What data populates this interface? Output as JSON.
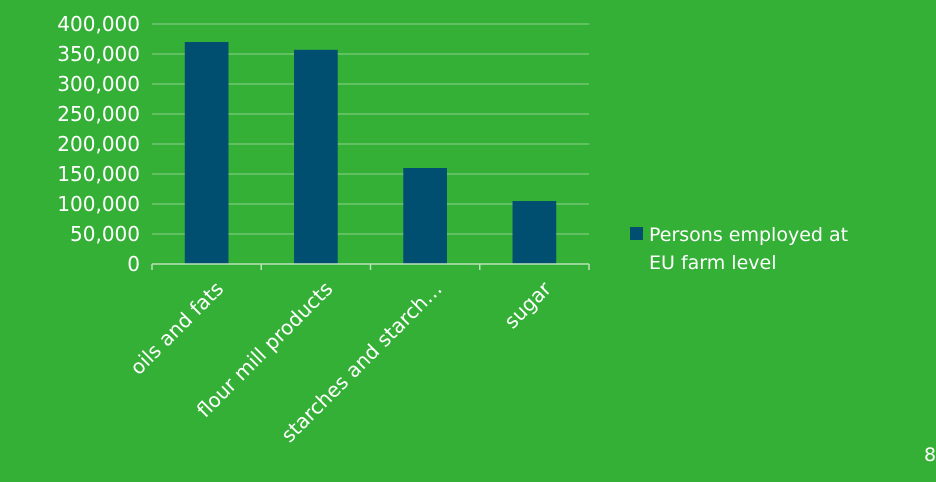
{
  "chart_data": {
    "type": "bar",
    "categories": [
      "oils and fats",
      "flour mill products",
      "starches and starch…",
      "sugar"
    ],
    "series": [
      {
        "name": "Persons employed at EU farm level",
        "values": [
          370000,
          357000,
          160000,
          105000
        ]
      }
    ],
    "title": "",
    "xlabel": "",
    "ylabel": "",
    "ylim": [
      0,
      400000
    ],
    "yticks": [
      "0",
      "50,000",
      "100,000",
      "150,000",
      "200,000",
      "250,000",
      "300,000",
      "350,000",
      "400,000"
    ],
    "grid": true,
    "legend_position": "right"
  },
  "legend": {
    "line1": "Persons employed at",
    "line2": "EU farm level"
  },
  "page_number": "8",
  "colors": {
    "background": "#33b035",
    "bar": "#004f71",
    "gridline": "#8fd28f",
    "text": "#ffffff"
  }
}
